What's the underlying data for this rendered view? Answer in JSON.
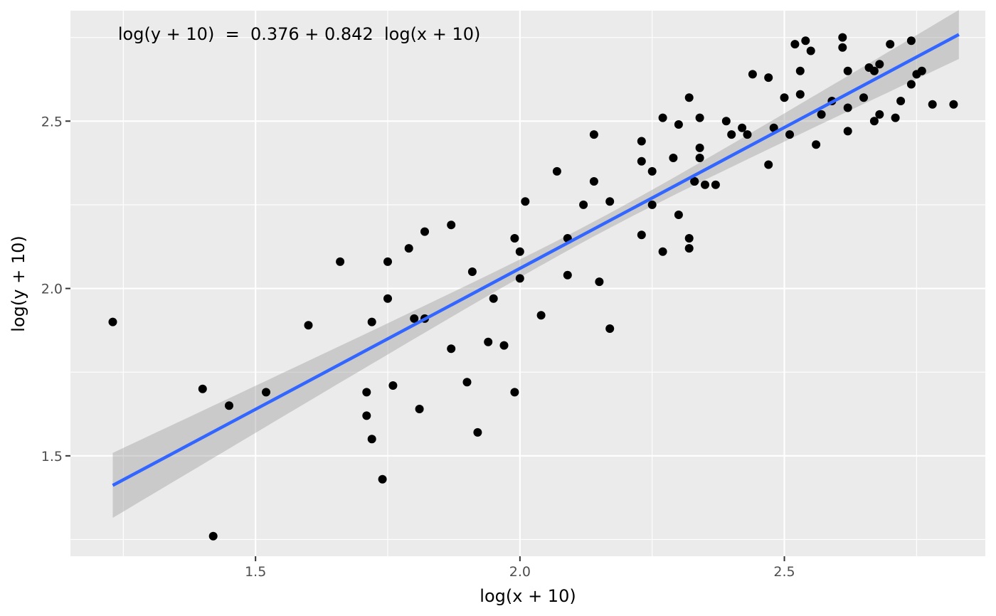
{
  "chart_data": {
    "type": "scatter",
    "title": "",
    "xlabel": "log(x + 10)",
    "ylabel": "log(y + 10)",
    "xlim": [
      1.15,
      2.88
    ],
    "ylim": [
      1.2,
      2.83
    ],
    "x_major_ticks": [
      1.5,
      2.0,
      2.5
    ],
    "x_tick_labels": [
      "1.5",
      "2.0",
      "2.5"
    ],
    "x_minor_ticks": [
      1.25,
      1.75,
      2.25,
      2.75
    ],
    "y_major_ticks": [
      1.5,
      2.0,
      2.5
    ],
    "y_tick_labels": [
      "1.5",
      "2.0",
      "2.5"
    ],
    "y_minor_ticks": [
      1.25,
      1.75,
      2.25,
      2.75
    ],
    "grid": true,
    "legend": "none",
    "annotation": {
      "text": "log(y + 10)  =  0.376 + 0.842  log(x + 10)",
      "x": 1.24,
      "y": 2.76
    },
    "regression": {
      "intercept": 0.376,
      "slope": 0.842,
      "x_range": [
        1.23,
        2.83
      ],
      "ci_halfwidth_ends": 0.097,
      "ci_halfwidth_center": 0.022,
      "ci_center_x": 2.15,
      "line_color": "#3366ff",
      "band_color": "#999999"
    },
    "series": [
      {
        "x": [
          1.23,
          1.4,
          1.42,
          1.45,
          1.52,
          1.6,
          1.66,
          1.71,
          1.71,
          1.72,
          1.72,
          1.74,
          1.75,
          1.75,
          1.76,
          1.79,
          1.8,
          1.81,
          1.82,
          1.82,
          1.87,
          1.87,
          1.9,
          1.91,
          1.92,
          1.94,
          1.95,
          1.97,
          1.99,
          1.99,
          2.0,
          2.0,
          2.01,
          2.04,
          2.07,
          2.09,
          2.09,
          2.12,
          2.14,
          2.14,
          2.15,
          2.17,
          2.17,
          2.23,
          2.23,
          2.23,
          2.25,
          2.25,
          2.27,
          2.27,
          2.29,
          2.3,
          2.3,
          2.32,
          2.32,
          2.32,
          2.33,
          2.33,
          2.34,
          2.34,
          2.34,
          2.35,
          2.37,
          2.39,
          2.4,
          2.42,
          2.43,
          2.44,
          2.47,
          2.47,
          2.48,
          2.5,
          2.51,
          2.52,
          2.53,
          2.53,
          2.54,
          2.55,
          2.56,
          2.57,
          2.59,
          2.61,
          2.61,
          2.62,
          2.62,
          2.62,
          2.65,
          2.66,
          2.67,
          2.67,
          2.68,
          2.68,
          2.7,
          2.71,
          2.72,
          2.74,
          2.74,
          2.75,
          2.76,
          2.78,
          2.82
        ],
        "y": [
          1.9,
          1.7,
          1.26,
          1.65,
          1.69,
          1.89,
          2.08,
          1.62,
          1.69,
          1.9,
          1.55,
          1.43,
          2.08,
          1.97,
          1.71,
          2.12,
          1.91,
          1.64,
          1.91,
          2.17,
          1.82,
          2.19,
          1.72,
          2.05,
          1.57,
          1.84,
          1.97,
          1.83,
          1.69,
          2.15,
          2.11,
          2.03,
          2.26,
          1.92,
          2.35,
          2.15,
          2.04,
          2.25,
          2.32,
          2.46,
          2.02,
          1.88,
          2.26,
          2.38,
          2.16,
          2.44,
          2.25,
          2.35,
          2.11,
          2.51,
          2.39,
          2.22,
          2.49,
          2.15,
          2.12,
          2.57,
          2.32,
          2.32,
          2.42,
          2.39,
          2.51,
          2.31,
          2.31,
          2.5,
          2.46,
          2.48,
          2.46,
          2.64,
          2.37,
          2.63,
          2.48,
          2.57,
          2.46,
          2.73,
          2.65,
          2.58,
          2.74,
          2.71,
          2.43,
          2.52,
          2.56,
          2.75,
          2.72,
          2.65,
          2.54,
          2.47,
          2.57,
          2.66,
          2.65,
          2.5,
          2.52,
          2.67,
          2.73,
          2.51,
          2.56,
          2.74,
          2.61,
          2.64,
          2.65,
          2.55,
          2.55
        ]
      }
    ]
  }
}
